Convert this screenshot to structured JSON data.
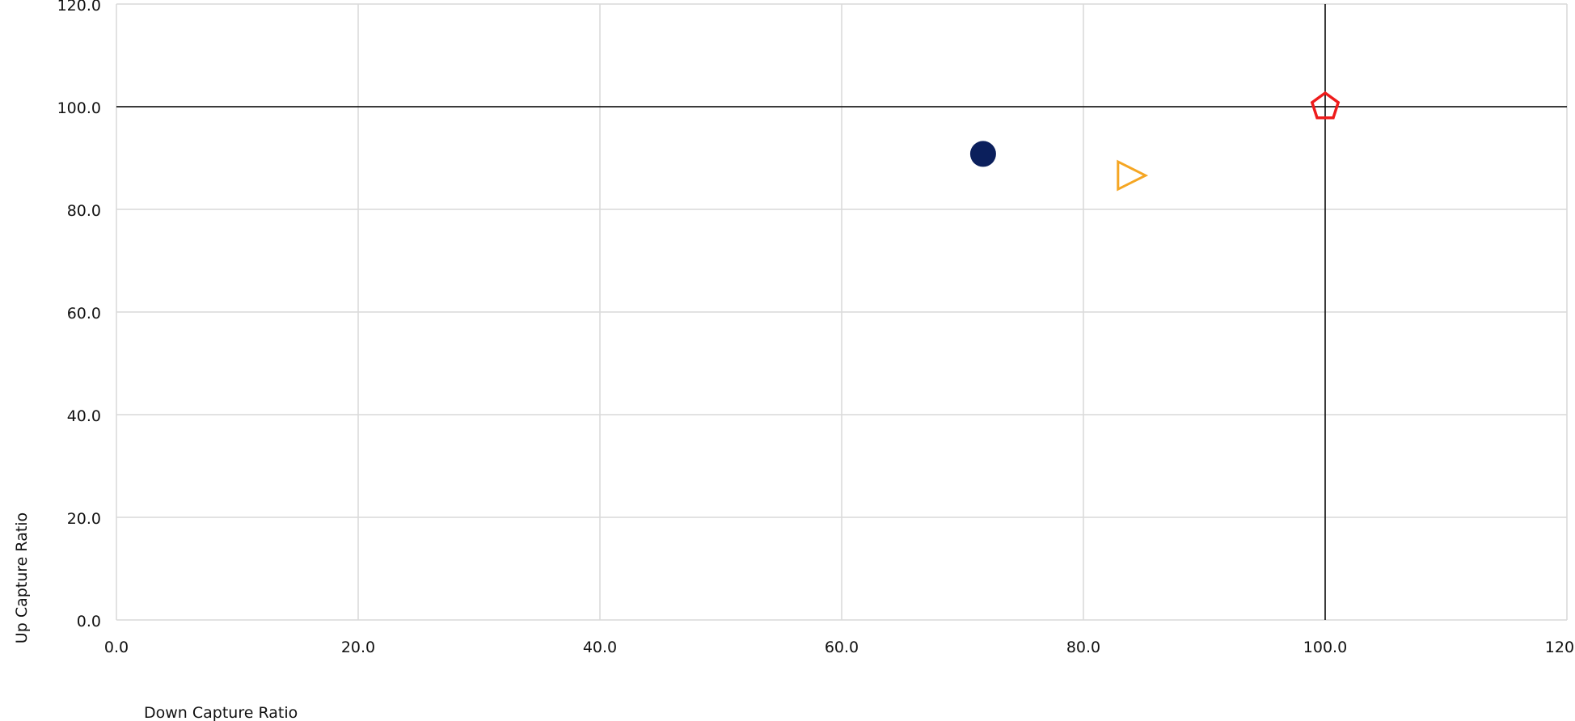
{
  "chart_data": {
    "type": "scatter",
    "title": "",
    "xlabel": "Down Capture Ratio",
    "ylabel": "Up Capture Ratio",
    "xlim": [
      0,
      120
    ],
    "ylim": [
      0,
      120
    ],
    "x_ticks": [
      "0.0",
      "20.0",
      "40.0",
      "60.0",
      "80.0",
      "100.0",
      "120.0"
    ],
    "y_ticks": [
      "0.0",
      "20.0",
      "40.0",
      "60.0",
      "80.0",
      "100.0",
      "120.0"
    ],
    "x_tick_values": [
      0,
      20,
      40,
      60,
      80,
      100,
      120
    ],
    "y_tick_values": [
      0,
      20,
      40,
      60,
      80,
      100,
      120
    ],
    "grid": true,
    "reference_lines": {
      "x": 100,
      "y": 100
    },
    "points": [
      {
        "x": 71.7,
        "y": 90.8,
        "marker": "filled-circle-icon",
        "color": "#0b1f5c"
      },
      {
        "x": 84.0,
        "y": 86.6,
        "marker": "hollow-triangle-right-icon",
        "color": "#f5a623"
      },
      {
        "x": 100.0,
        "y": 100.0,
        "marker": "hollow-pentagon-icon",
        "color": "#ee1c1c"
      }
    ]
  }
}
